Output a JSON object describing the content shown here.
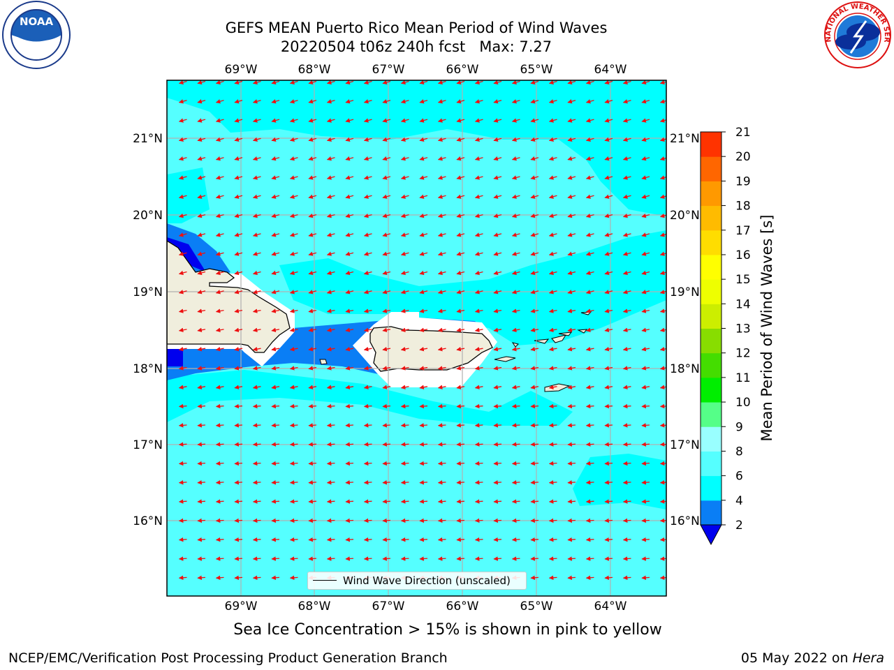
{
  "title": {
    "line1": "GEFS MEAN Puerto Rico Mean Period of Wind Waves",
    "line2": "20220504 t06z 240h fcst   Max: 7.27"
  },
  "logos": {
    "left": {
      "name": "noaa-logo",
      "text": "NOAA"
    },
    "right": {
      "name": "nws-logo",
      "text": "NATIONAL WEATHER SERVICE"
    }
  },
  "map": {
    "lon_labels": [
      "69°W",
      "68°W",
      "67°W",
      "66°W",
      "65°W",
      "64°W"
    ],
    "lat_labels": [
      "21°N",
      "20°N",
      "19°N",
      "18°N",
      "17°N",
      "16°N"
    ],
    "colors": {
      "land": "#f0eedd",
      "deep_blue": "#0000ee",
      "mid_blue": "#0a7ef5",
      "cyan": "#00ffff",
      "light_cyan": "#55ffff",
      "arrow": "#ee1111"
    }
  },
  "legend": {
    "label": "Wind Wave Direction (unscaled)"
  },
  "colorbar": {
    "title": "Mean Period of Wind Waves [s]",
    "ticks": [
      "2",
      "4",
      "6",
      "8",
      "9",
      "10",
      "11",
      "12",
      "13",
      "14",
      "15",
      "16",
      "17",
      "18",
      "19",
      "20",
      "21"
    ],
    "colors": [
      "#0a7ef5",
      "#00ffff",
      "#55ffff",
      "#99ffff",
      "#55ff88",
      "#00ee00",
      "#44dd00",
      "#88dd00",
      "#ccee00",
      "#eeff00",
      "#ffff00",
      "#ffdd00",
      "#ffbb00",
      "#ff9900",
      "#ff6600",
      "#ff3300",
      "#ff0000"
    ],
    "under_color": "#0000ee"
  },
  "footer": {
    "note": "Sea Ice Concentration > 15% is shown in pink to yellow",
    "credit": "NCEP/EMC/Verification Post Processing Product Generation Branch",
    "date": "05 May 2022 on ",
    "host": "Hera"
  }
}
